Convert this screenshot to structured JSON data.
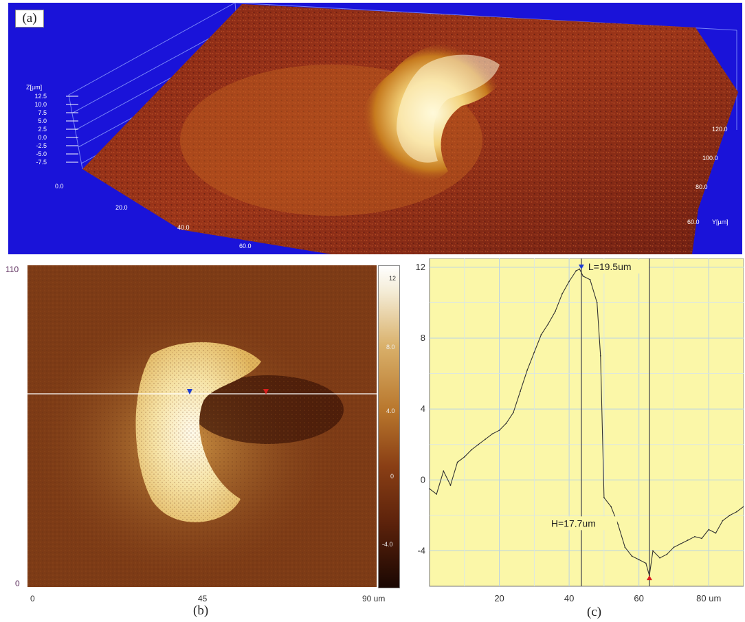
{
  "panel_a": {
    "label": "(a)",
    "z_axis_label": "Z[µm]",
    "z_ticks": [
      "12.5",
      "10.0",
      "7.5",
      "5.0",
      "2.5",
      "0.0",
      "-2.5",
      "-5.0",
      "-7.5"
    ],
    "x_ticks": [
      "0.0",
      "20.0",
      "40.0",
      "60.0"
    ],
    "y_ticks": [
      "120.0",
      "100.0",
      "80.0",
      "60.0"
    ],
    "y_axis_label": "Y[µm]"
  },
  "panel_b": {
    "label": "(b)",
    "y_tick_top": "110",
    "y_tick_bottom": "0",
    "x_ticks": [
      "0",
      "45",
      "90 um"
    ],
    "colorbar_ticks": [
      "12",
      "8.0",
      "4.0",
      "0",
      "-4.0"
    ]
  },
  "panel_c": {
    "label": "(c)",
    "annotation_length": "L=19.5um",
    "annotation_height": "H=17.7um",
    "background_color": "#fbf7a8"
  },
  "chart_data": {
    "type": "line",
    "title": "",
    "xlabel": "um",
    "ylabel": "",
    "xlim": [
      0,
      90
    ],
    "ylim": [
      -6,
      12.5
    ],
    "x_ticks": [
      20,
      40,
      60,
      80
    ],
    "x_tick_labels": [
      "20",
      "40",
      "60",
      "80 um"
    ],
    "y_ticks": [
      12,
      8,
      4,
      0,
      -4
    ],
    "y_tick_labels": [
      "12",
      "8",
      "4",
      "0",
      "-4"
    ],
    "grid": true,
    "markers": [
      {
        "x": 43.5,
        "y": 12
      },
      {
        "x": 63,
        "y": -5.5
      }
    ],
    "x": [
      0,
      2,
      4,
      6,
      8,
      10,
      12,
      14,
      16,
      18,
      20,
      22,
      24,
      26,
      28,
      30,
      32,
      34,
      36,
      38,
      40,
      42,
      43,
      44,
      46,
      48,
      49,
      50,
      52,
      54,
      56,
      58,
      60,
      62,
      63,
      64,
      66,
      68,
      70,
      72,
      74,
      76,
      78,
      80,
      82,
      84,
      86,
      88,
      90
    ],
    "series": [
      {
        "values": [
          -0.5,
          -0.8,
          0.5,
          -0.3,
          1.0,
          1.3,
          1.7,
          2.0,
          2.3,
          2.6,
          2.8,
          3.2,
          3.8,
          5.0,
          6.2,
          7.2,
          8.2,
          8.8,
          9.5,
          10.5,
          11.2,
          11.8,
          11.9,
          11.5,
          11.3,
          10.0,
          7.0,
          -1.0,
          -1.5,
          -2.5,
          -3.8,
          -4.3,
          -4.5,
          -4.7,
          -5.4,
          -4.0,
          -4.4,
          -4.2,
          -3.8,
          -3.6,
          -3.4,
          -3.2,
          -3.3,
          -2.8,
          -3.0,
          -2.3,
          -2.0,
          -1.8,
          -1.5
        ]
      }
    ]
  }
}
